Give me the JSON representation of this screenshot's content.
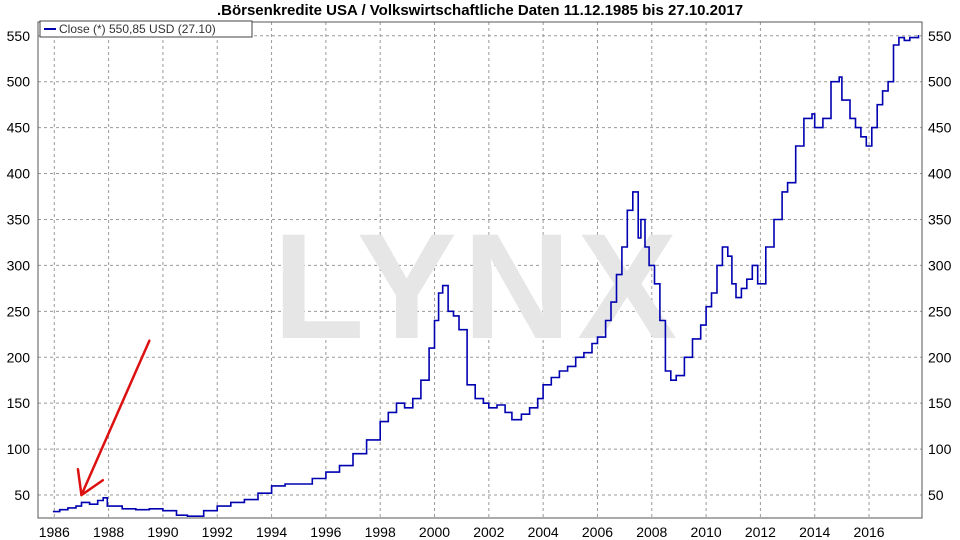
{
  "chart_data": {
    "type": "line",
    "title": ".Börsenkredite USA / Volkswirtschaftliche Daten 11.12.1985 bis 27.10.2017",
    "legend": {
      "label": "Close (*) 550,85 USD (27.10)",
      "placement": "top-left",
      "color": "#0000b0"
    },
    "watermark": "LYNX",
    "xlim": [
      1985.4,
      2017.95
    ],
    "ylim": [
      25,
      565
    ],
    "xticks": [
      1986,
      1988,
      1990,
      1992,
      1994,
      1996,
      1998,
      2000,
      2002,
      2004,
      2006,
      2008,
      2010,
      2012,
      2014,
      2016
    ],
    "yticks": [
      50,
      100,
      150,
      200,
      250,
      300,
      350,
      400,
      450,
      500,
      550
    ],
    "grid": true,
    "series": [
      {
        "color": "#0000b0",
        "x": [
          1985.95,
          1986.2,
          1986.5,
          1986.8,
          1987.0,
          1987.3,
          1987.6,
          1987.8,
          1987.95,
          1988.5,
          1989.0,
          1989.5,
          1990.0,
          1990.5,
          1990.9,
          1991.5,
          1992.0,
          1992.5,
          1993.0,
          1993.5,
          1994.0,
          1994.5,
          1995.0,
          1995.5,
          1996.0,
          1996.5,
          1997.0,
          1997.5,
          1998.0,
          1998.3,
          1998.6,
          1998.9,
          1999.2,
          1999.5,
          1999.8,
          2000.0,
          2000.15,
          2000.3,
          2000.5,
          2000.7,
          2000.9,
          2001.2,
          2001.5,
          2001.8,
          2002.0,
          2002.3,
          2002.6,
          2002.85,
          2003.2,
          2003.5,
          2003.8,
          2004.0,
          2004.3,
          2004.6,
          2004.9,
          2005.2,
          2005.5,
          2005.8,
          2006.0,
          2006.3,
          2006.5,
          2006.7,
          2006.9,
          2007.1,
          2007.3,
          2007.5,
          2007.6,
          2007.75,
          2007.9,
          2008.1,
          2008.3,
          2008.5,
          2008.7,
          2008.9,
          2009.2,
          2009.5,
          2009.8,
          2010.0,
          2010.2,
          2010.4,
          2010.6,
          2010.8,
          2010.95,
          2011.1,
          2011.3,
          2011.5,
          2011.7,
          2011.9,
          2012.2,
          2012.5,
          2012.8,
          2013.0,
          2013.3,
          2013.6,
          2013.9,
          2014.0,
          2014.3,
          2014.6,
          2014.9,
          2015.0,
          2015.3,
          2015.5,
          2015.7,
          2015.9,
          2016.1,
          2016.3,
          2016.5,
          2016.7,
          2016.9,
          2017.1,
          2017.3,
          2017.5,
          2017.82
        ],
        "y": [
          32,
          34,
          36,
          38,
          42,
          40,
          44,
          47,
          38,
          35,
          34,
          35,
          33,
          28,
          27,
          33,
          38,
          42,
          45,
          52,
          60,
          62,
          62,
          68,
          75,
          82,
          95,
          110,
          130,
          140,
          150,
          145,
          155,
          175,
          210,
          240,
          270,
          278,
          250,
          245,
          230,
          170,
          155,
          150,
          145,
          148,
          140,
          132,
          138,
          145,
          155,
          170,
          178,
          185,
          190,
          200,
          205,
          215,
          222,
          240,
          260,
          290,
          320,
          360,
          380,
          330,
          350,
          320,
          300,
          280,
          240,
          185,
          175,
          180,
          200,
          220,
          235,
          255,
          270,
          300,
          320,
          310,
          280,
          265,
          275,
          285,
          300,
          280,
          320,
          350,
          380,
          390,
          430,
          460,
          465,
          450,
          460,
          500,
          505,
          480,
          460,
          450,
          440,
          430,
          450,
          475,
          490,
          500,
          540,
          548,
          545,
          548,
          550.85
        ]
      }
    ],
    "annotations": [
      {
        "type": "arrow",
        "color": "#dd1111",
        "from": [
          1989.5,
          218
        ],
        "to": [
          1987.0,
          50
        ]
      }
    ]
  }
}
